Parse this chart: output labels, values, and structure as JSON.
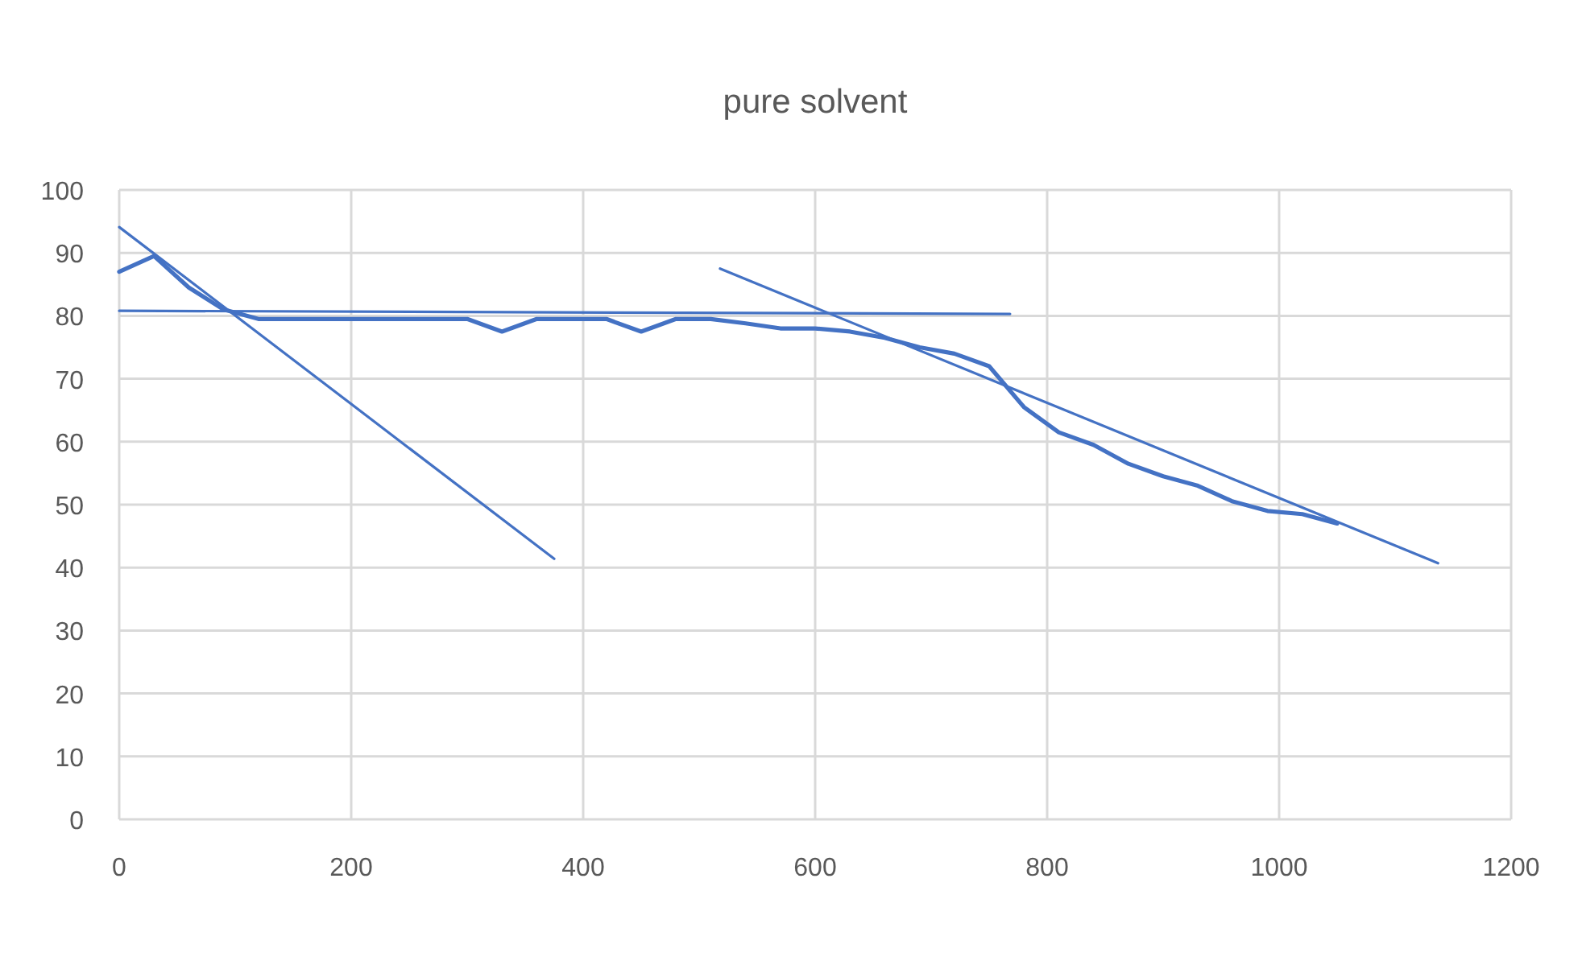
{
  "chart_data": {
    "type": "line",
    "title": "pure solvent",
    "xlim": [
      0,
      1200
    ],
    "xticks": [
      0,
      200,
      400,
      600,
      800,
      1000,
      1200
    ],
    "ylim": [
      0,
      100
    ],
    "yticks": [
      0,
      10,
      20,
      30,
      40,
      50,
      60,
      70,
      80,
      90,
      100
    ],
    "grid": true,
    "marker": "none",
    "line_style": "solid",
    "series": [
      {
        "color": "#4472c4",
        "x": [
          0,
          30,
          60,
          90,
          120,
          150,
          180,
          210,
          240,
          270,
          300,
          330,
          360,
          390,
          420,
          450,
          480,
          510,
          540,
          570,
          600,
          630,
          660,
          690,
          720,
          750,
          780,
          810,
          840,
          870,
          900,
          930,
          960,
          990,
          1020,
          1050
        ],
        "values": [
          87,
          89.5,
          84.5,
          81,
          79.5,
          79.5,
          79.5,
          79.5,
          79.5,
          79.5,
          79.5,
          77.5,
          79.5,
          79.5,
          79.5,
          77.5,
          79.5,
          79.5,
          78.8,
          78,
          78,
          77.5,
          76.5,
          75,
          74,
          72,
          65.5,
          61.5,
          59.5,
          56.5,
          54.5,
          53,
          50.5,
          49,
          48.5,
          47
        ]
      },
      {
        "color": "#4472c4",
        "x": [
          0,
          375
        ],
        "values": [
          94.1,
          41.4
        ]
      },
      {
        "color": "#4472c4",
        "x": [
          0,
          768
        ],
        "values": [
          80.8,
          80.3
        ]
      },
      {
        "color": "#4472c4",
        "x": [
          518,
          1137
        ],
        "values": [
          87.5,
          40.7
        ]
      }
    ]
  }
}
